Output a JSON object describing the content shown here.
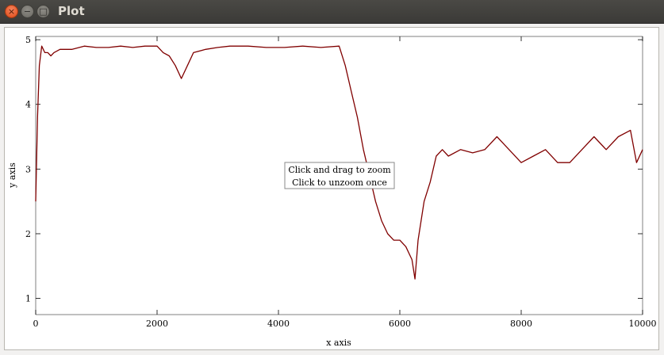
{
  "window": {
    "title": "Plot",
    "buttons": {
      "close": "×",
      "minimize": "−",
      "maximize": "□"
    }
  },
  "hint": {
    "line1": "Click and drag to zoom",
    "line2": "Click to unzoom once"
  },
  "colors": {
    "series": "#800000",
    "axis": "#000000"
  },
  "chart_data": {
    "type": "line",
    "xlabel": "x axis",
    "ylabel": "y axis",
    "xlim": [
      0,
      10000
    ],
    "ylim": [
      0.75,
      5.05
    ],
    "x_ticks": [
      0,
      2000,
      4000,
      6000,
      8000,
      10000
    ],
    "x_tick_labels": [
      "0",
      "2000",
      "4000",
      "6000",
      "8000",
      "10000"
    ],
    "y_ticks": [
      1,
      2,
      3,
      4,
      5
    ],
    "y_tick_labels": [
      "1",
      "2",
      "3",
      "4",
      "5"
    ],
    "grid": false,
    "series": [
      {
        "x": [
          0,
          30,
          60,
          100,
          150,
          200,
          250,
          300,
          400,
          600,
          800,
          1000,
          1200,
          1400,
          1600,
          1800,
          2000,
          2100,
          2200,
          2300,
          2400,
          2500,
          2600,
          2800,
          3000,
          3200,
          3500,
          3800,
          4100,
          4400,
          4700,
          5000,
          5100,
          5200,
          5300,
          5400,
          5500,
          5600,
          5700,
          5800,
          5900,
          6000,
          6100,
          6200,
          6250,
          6300,
          6400,
          6500,
          6600,
          6700,
          6800,
          7000,
          7200,
          7400,
          7600,
          7800,
          8000,
          8200,
          8400,
          8600,
          8800,
          9000,
          9200,
          9400,
          9600,
          9800,
          9900,
          10000
        ],
        "y": [
          2.5,
          3.8,
          4.6,
          4.9,
          4.8,
          4.8,
          4.75,
          4.8,
          4.85,
          4.85,
          4.9,
          4.88,
          4.88,
          4.9,
          4.88,
          4.9,
          4.9,
          4.8,
          4.75,
          4.6,
          4.4,
          4.6,
          4.8,
          4.85,
          4.88,
          4.9,
          4.9,
          4.88,
          4.88,
          4.9,
          4.88,
          4.9,
          4.6,
          4.2,
          3.8,
          3.3,
          2.9,
          2.5,
          2.2,
          2.0,
          1.9,
          1.9,
          1.8,
          1.6,
          1.3,
          1.9,
          2.5,
          2.8,
          3.2,
          3.3,
          3.2,
          3.3,
          3.25,
          3.3,
          3.5,
          3.3,
          3.1,
          3.2,
          3.3,
          3.1,
          3.1,
          3.3,
          3.5,
          3.3,
          3.5,
          3.6,
          3.1,
          3.3
        ]
      }
    ]
  }
}
